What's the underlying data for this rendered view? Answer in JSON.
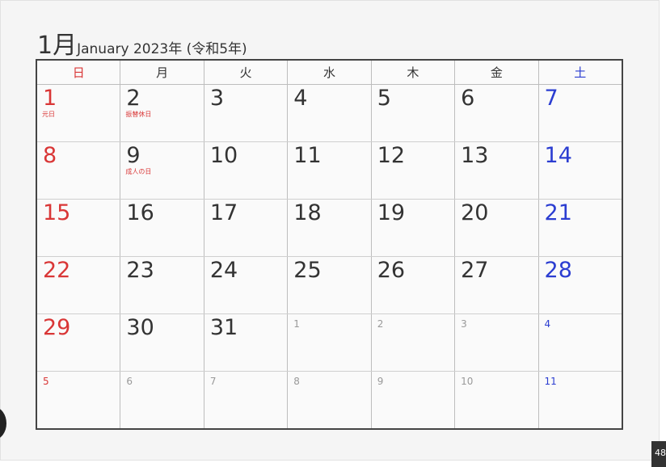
{
  "title": {
    "month": "1月",
    "subtitle": "January 2023年 (令和5年)"
  },
  "weekdays": [
    "日",
    "月",
    "火",
    "水",
    "木",
    "金",
    "土"
  ],
  "weeks": [
    [
      {
        "d": "1",
        "h": "元日"
      },
      {
        "d": "2",
        "h": "振替休日"
      },
      {
        "d": "3",
        "h": ""
      },
      {
        "d": "4",
        "h": ""
      },
      {
        "d": "5",
        "h": ""
      },
      {
        "d": "6",
        "h": ""
      },
      {
        "d": "7",
        "h": ""
      }
    ],
    [
      {
        "d": "8",
        "h": ""
      },
      {
        "d": "9",
        "h": "成人の日"
      },
      {
        "d": "10",
        "h": ""
      },
      {
        "d": "11",
        "h": ""
      },
      {
        "d": "12",
        "h": ""
      },
      {
        "d": "13",
        "h": ""
      },
      {
        "d": "14",
        "h": ""
      }
    ],
    [
      {
        "d": "15",
        "h": ""
      },
      {
        "d": "16",
        "h": ""
      },
      {
        "d": "17",
        "h": ""
      },
      {
        "d": "18",
        "h": ""
      },
      {
        "d": "19",
        "h": ""
      },
      {
        "d": "20",
        "h": ""
      },
      {
        "d": "21",
        "h": ""
      }
    ],
    [
      {
        "d": "22",
        "h": ""
      },
      {
        "d": "23",
        "h": ""
      },
      {
        "d": "24",
        "h": ""
      },
      {
        "d": "25",
        "h": ""
      },
      {
        "d": "26",
        "h": ""
      },
      {
        "d": "27",
        "h": ""
      },
      {
        "d": "28",
        "h": ""
      }
    ],
    [
      {
        "d": "29",
        "h": ""
      },
      {
        "d": "30",
        "h": ""
      },
      {
        "d": "31",
        "h": ""
      },
      {
        "d": "1",
        "h": "",
        "o": true
      },
      {
        "d": "2",
        "h": "",
        "o": true
      },
      {
        "d": "3",
        "h": "",
        "o": true
      },
      {
        "d": "4",
        "h": "",
        "o": true
      }
    ],
    [
      {
        "d": "5",
        "h": "",
        "o": true
      },
      {
        "d": "6",
        "h": "",
        "o": true
      },
      {
        "d": "7",
        "h": "",
        "o": true
      },
      {
        "d": "8",
        "h": "",
        "o": true
      },
      {
        "d": "9",
        "h": "",
        "o": true
      },
      {
        "d": "10",
        "h": "",
        "o": true
      },
      {
        "d": "11",
        "h": "",
        "o": true
      }
    ]
  ],
  "corner_badge": "48",
  "colors": {
    "sunday": "#d93636",
    "saturday": "#2b3dd1",
    "text": "#333333",
    "other_month": "#999999"
  }
}
